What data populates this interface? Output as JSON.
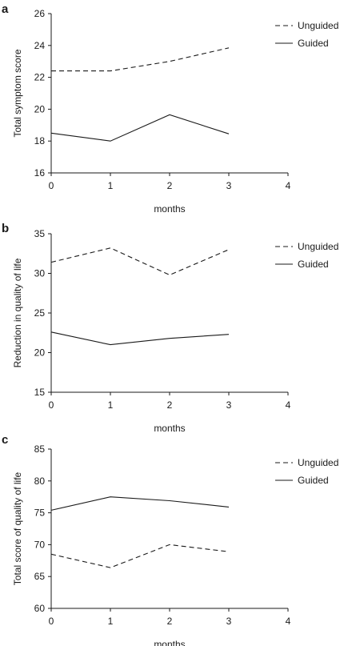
{
  "chart_data": [
    {
      "type": "line",
      "panel_label": "a",
      "xlabel": "months",
      "ylabel": "Total symptom score",
      "xlim": [
        0,
        4
      ],
      "ylim": [
        16,
        26
      ],
      "xticks": [
        0,
        1,
        2,
        3,
        4
      ],
      "yticks": [
        16,
        18,
        20,
        22,
        24,
        26
      ],
      "legend_position": "top-right",
      "series": [
        {
          "name": "Unguided",
          "style": "dashed",
          "x": [
            0,
            1,
            2,
            3
          ],
          "y": [
            22.4,
            22.4,
            23.0,
            23.85
          ]
        },
        {
          "name": "Guided",
          "style": "solid",
          "x": [
            0,
            1,
            2,
            3
          ],
          "y": [
            18.5,
            18.0,
            19.65,
            18.45
          ]
        }
      ]
    },
    {
      "type": "line",
      "panel_label": "b",
      "xlabel": "months",
      "ylabel": "Reduction in quality of life",
      "xlim": [
        0,
        4
      ],
      "ylim": [
        15,
        35
      ],
      "xticks": [
        0,
        1,
        2,
        3,
        4
      ],
      "yticks": [
        15,
        20,
        25,
        30,
        35
      ],
      "legend_position": "top-right",
      "series": [
        {
          "name": "Unguided",
          "style": "dashed",
          "x": [
            0,
            1,
            2,
            3
          ],
          "y": [
            31.4,
            33.2,
            29.8,
            33.0
          ]
        },
        {
          "name": "Guided",
          "style": "solid",
          "x": [
            0,
            1,
            2,
            3
          ],
          "y": [
            22.6,
            21.0,
            21.8,
            22.3
          ]
        }
      ]
    },
    {
      "type": "line",
      "panel_label": "c",
      "xlabel": "months",
      "ylabel": "Total score of quality of life",
      "xlim": [
        0,
        4
      ],
      "ylim": [
        60,
        85
      ],
      "xticks": [
        0,
        1,
        2,
        3,
        4
      ],
      "yticks": [
        60,
        65,
        70,
        75,
        80,
        85
      ],
      "legend_position": "top-right",
      "series": [
        {
          "name": "Unguided",
          "style": "dashed",
          "x": [
            0,
            1,
            2,
            3
          ],
          "y": [
            68.5,
            66.4,
            70.0,
            68.9
          ]
        },
        {
          "name": "Guided",
          "style": "solid",
          "x": [
            0,
            1,
            2,
            3
          ],
          "y": [
            75.4,
            77.5,
            76.9,
            75.9
          ]
        }
      ]
    }
  ]
}
